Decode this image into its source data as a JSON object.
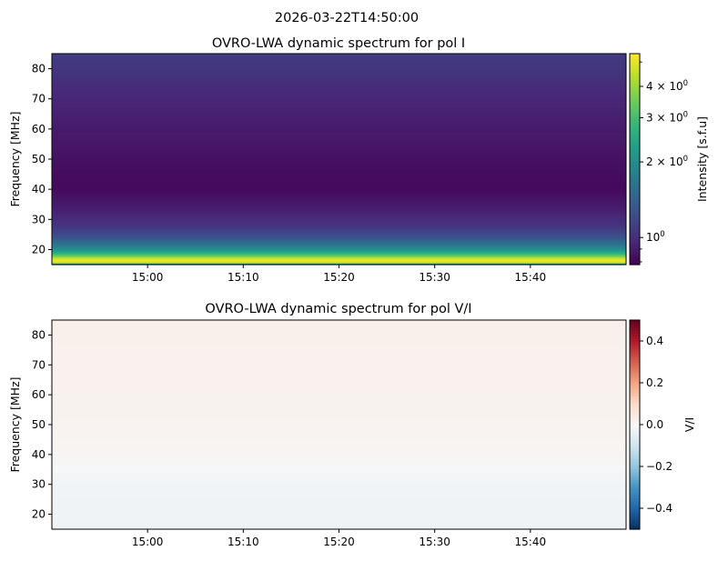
{
  "suptitle": "2026-03-22T14:50:00",
  "chart_data": [
    {
      "type": "heatmap",
      "title": "OVRO-LWA dynamic spectrum for pol I",
      "xlabel": "",
      "ylabel": "Frequency [MHz]",
      "xlim": [
        "14:50",
        "15:50"
      ],
      "ylim": [
        15,
        85
      ],
      "xticks": [
        "15:00",
        "15:10",
        "15:20",
        "15:30",
        "15:40"
      ],
      "xtick_values_min": [
        600,
        610,
        620,
        630,
        640
      ],
      "yticks": [
        20,
        30,
        40,
        50,
        60,
        70,
        80
      ],
      "colormap": "viridis",
      "color_scale": "log",
      "colorbar": {
        "label": "Intensity [s.f.u]",
        "range": [
          0.78,
          5.4
        ],
        "ticks": [
          1,
          2,
          3,
          4
        ],
        "tick_labels": [
          "10",
          "2 × 10",
          "3 × 10",
          "4 × 10"
        ],
        "tick_exp": "0"
      },
      "frequency_profile": {
        "frequency_mhz": [
          15,
          16,
          17,
          18,
          19,
          20,
          22,
          24,
          26,
          28,
          30,
          33,
          36,
          40,
          45,
          50,
          55,
          60,
          65,
          70,
          75,
          80,
          85
        ],
        "intensity": [
          1.5,
          5.2,
          5.0,
          3.4,
          2.6,
          2.1,
          1.6,
          1.3,
          1.15,
          1.05,
          1.0,
          0.93,
          0.88,
          0.82,
          0.83,
          0.85,
          0.88,
          0.9,
          0.93,
          0.96,
          1.0,
          1.05,
          1.1
        ]
      }
    },
    {
      "type": "heatmap",
      "title": "OVRO-LWA dynamic spectrum for pol V/I",
      "xlabel": "",
      "ylabel": "Frequency [MHz]",
      "xlim": [
        "14:50",
        "15:50"
      ],
      "ylim": [
        15,
        85
      ],
      "xticks": [
        "15:00",
        "15:10",
        "15:20",
        "15:30",
        "15:40"
      ],
      "yticks": [
        20,
        30,
        40,
        50,
        60,
        70,
        80
      ],
      "colormap": "RdBu_r",
      "colorbar": {
        "label": "V/I",
        "range": [
          -0.5,
          0.5
        ],
        "ticks": [
          0.4,
          0.2,
          0.0,
          -0.2,
          -0.4
        ],
        "tick_labels": [
          "0.4",
          "0.2",
          "0.0",
          "−0.2",
          "−0.4"
        ]
      },
      "frequency_profile": {
        "frequency_mhz": [
          15,
          16,
          17,
          20,
          25,
          30,
          33,
          36,
          40,
          50,
          60,
          70,
          80,
          85
        ],
        "v_over_i": [
          0.0,
          -0.03,
          -0.02,
          -0.02,
          -0.02,
          -0.015,
          -0.01,
          0.0,
          0.01,
          0.015,
          0.02,
          0.02,
          0.025,
          0.025
        ]
      }
    }
  ]
}
